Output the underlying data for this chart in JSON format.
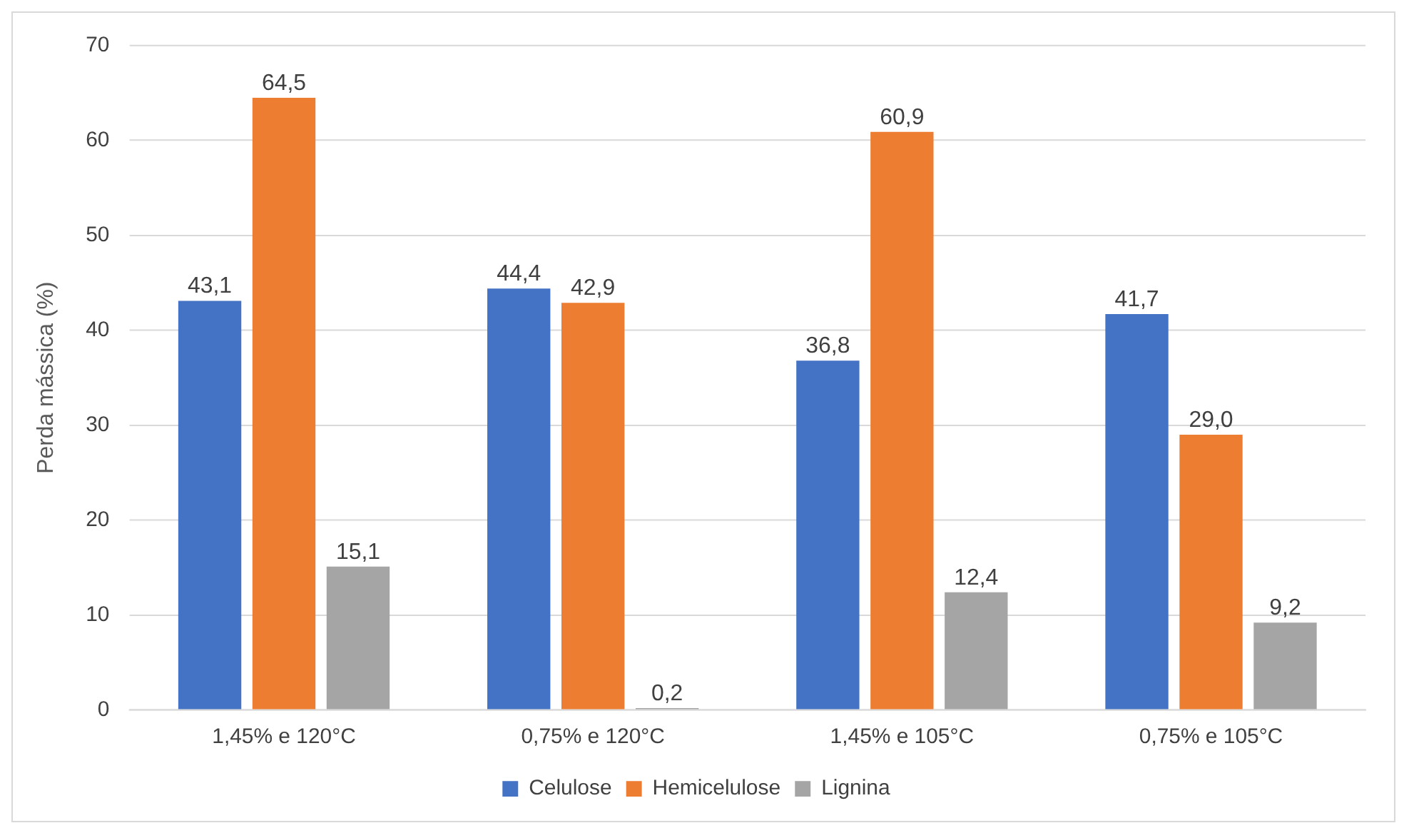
{
  "chart_data": {
    "type": "bar",
    "ylabel": "Perda mássica (%)",
    "categories": [
      "1,45% e 120°C",
      "0,75% e 120°C",
      "1,45% e 105°C",
      "0,75% e 105°C"
    ],
    "series": [
      {
        "name": "Celulose",
        "color": "#4472c4",
        "values": [
          43.1,
          44.4,
          36.8,
          41.7
        ],
        "value_labels": [
          "43,1",
          "44,4",
          "36,8",
          "41,7"
        ]
      },
      {
        "name": "Hemicelulose",
        "color": "#ed7d31",
        "values": [
          64.5,
          42.9,
          60.9,
          29.0
        ],
        "value_labels": [
          "64,5",
          "42,9",
          "60,9",
          "29,0"
        ]
      },
      {
        "name": "Lignina",
        "color": "#a5a5a5",
        "values": [
          15.1,
          0.2,
          12.4,
          9.2
        ],
        "value_labels": [
          "15,1",
          "0,2",
          "12,4",
          "9,2"
        ]
      }
    ],
    "ylim": [
      0,
      70
    ],
    "yticks": [
      0,
      10,
      20,
      30,
      40,
      50,
      60,
      70
    ],
    "grid": "y",
    "legend": "bottom"
  }
}
